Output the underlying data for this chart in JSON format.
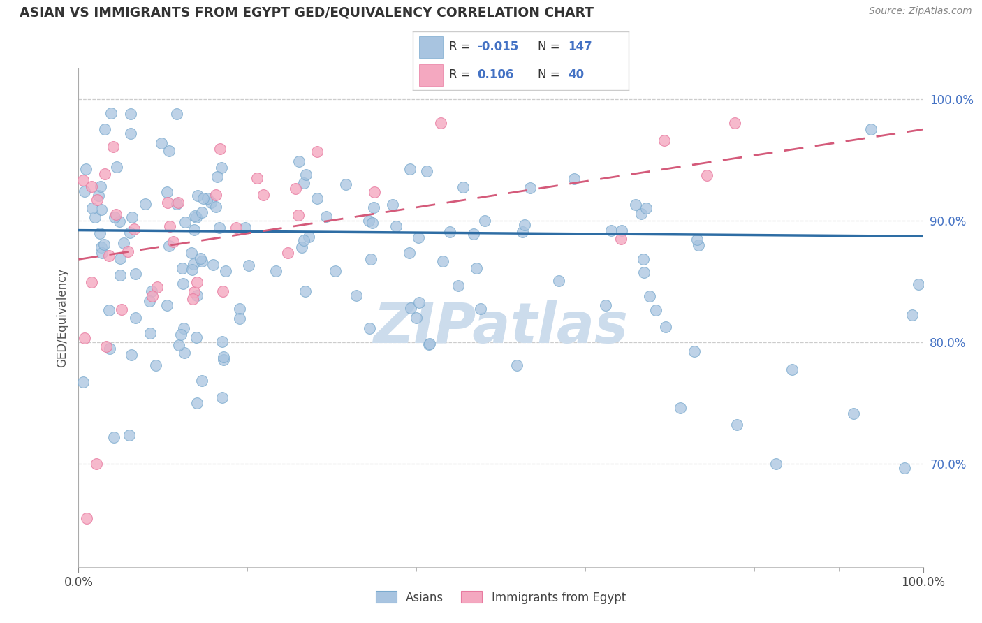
{
  "title": "ASIAN VS IMMIGRANTS FROM EGYPT GED/EQUIVALENCY CORRELATION CHART",
  "source": "Source: ZipAtlas.com",
  "ylabel": "GED/Equivalency",
  "right_yticks": [
    "70.0%",
    "80.0%",
    "90.0%",
    "100.0%"
  ],
  "right_ytick_vals": [
    0.7,
    0.8,
    0.9,
    1.0
  ],
  "legend_r_asian": "-0.015",
  "legend_n_asian": "147",
  "legend_r_egypt": "0.106",
  "legend_n_egypt": "40",
  "legend_label_asian": "Asians",
  "legend_label_egypt": "Immigrants from Egypt",
  "asian_color": "#a8c4e0",
  "asian_edge_color": "#7aaace",
  "asian_line_color": "#2e6da4",
  "egypt_color": "#f4a8c0",
  "egypt_edge_color": "#e87aa0",
  "egypt_line_color": "#d45a7a",
  "background_color": "#ffffff",
  "title_color": "#333333",
  "source_color": "#888888",
  "watermark_color": "#ccdcec",
  "ytick_color": "#4472c4",
  "xlim": [
    0.0,
    1.0
  ],
  "ylim": [
    0.615,
    1.025
  ],
  "asian_trend_start_y": 0.892,
  "asian_trend_end_y": 0.887,
  "egypt_trend_start_y": 0.868,
  "egypt_trend_end_y": 0.975
}
